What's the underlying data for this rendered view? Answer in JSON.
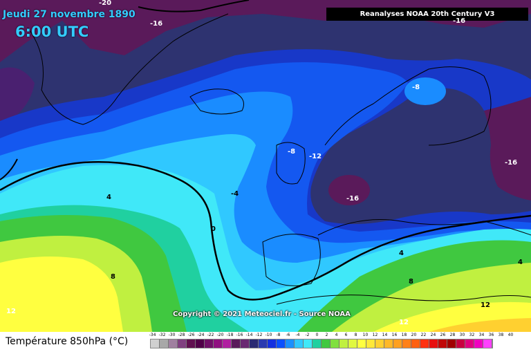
{
  "map": {
    "date": "Jeudi 27 novembre 1890",
    "time": "6:00 UTC",
    "source": "Reanalyses NOAA 20th Century V3",
    "copyright": "Copyright © 2021 Meteociel.fr - Source NOAA",
    "contour_labels": [
      {
        "text": "-20",
        "tone": "light"
      },
      {
        "text": "-16",
        "tone": "light"
      },
      {
        "text": "-16",
        "tone": "light"
      },
      {
        "text": "-8",
        "tone": "light"
      },
      {
        "text": "-8",
        "tone": "light"
      },
      {
        "text": "-12",
        "tone": "light"
      },
      {
        "text": "-16",
        "tone": "light"
      },
      {
        "text": "-16",
        "tone": "light"
      },
      {
        "text": "-4",
        "tone": "dark"
      },
      {
        "text": "4",
        "tone": "dark"
      },
      {
        "text": "0",
        "tone": "dark"
      },
      {
        "text": "4",
        "tone": "dark"
      },
      {
        "text": "8",
        "tone": "dark"
      },
      {
        "text": "4",
        "tone": "dark"
      },
      {
        "text": "8",
        "tone": "dark"
      },
      {
        "text": "12",
        "tone": "dark"
      },
      {
        "text": "12",
        "tone": "light"
      },
      {
        "text": "12",
        "tone": "light"
      }
    ]
  },
  "legend": {
    "title": "Température 850hPa (°C)",
    "values": [
      "-34",
      "-32",
      "-30",
      "-28",
      "-26",
      "-24",
      "-22",
      "-20",
      "-18",
      "-16",
      "-14",
      "-12",
      "-10",
      "-8",
      "-6",
      "-4",
      "-2",
      "0",
      "2",
      "4",
      "6",
      "8",
      "10",
      "12",
      "14",
      "16",
      "18",
      "20",
      "22",
      "24",
      "26",
      "28",
      "30",
      "32",
      "34",
      "36",
      "38",
      "40"
    ],
    "colors": [
      "#d0d0d0",
      "#a8a8a8",
      "#a080a0",
      "#804080",
      "#601050",
      "#500048",
      "#701068",
      "#901080",
      "#b020a0",
      "#5a1a5a",
      "#6a2a72",
      "#2a2a72",
      "#2a3ab0",
      "#1430e0",
      "#0a50ff",
      "#1a90ff",
      "#30c8ff",
      "#40e8f8",
      "#20d0a0",
      "#40c840",
      "#80e040",
      "#c0f040",
      "#e0f840",
      "#ffff40",
      "#ffe838",
      "#ffd030",
      "#ffb828",
      "#ffa020",
      "#ff8018",
      "#ff6010",
      "#ff3010",
      "#e81010",
      "#c00808",
      "#a00000",
      "#c80040",
      "#e00080",
      "#f000c0",
      "#ff40ff"
    ]
  }
}
